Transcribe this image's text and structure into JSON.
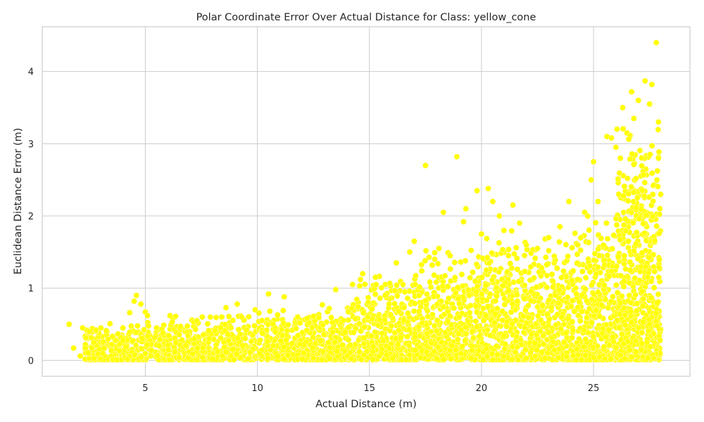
{
  "chart_data": {
    "type": "scatter",
    "title": "Polar Coordinate Error Over Actual Distance for Class: yellow_cone",
    "xlabel": "Actual Distance (m)",
    "ylabel": "Euclidean Distance Error (m)",
    "xlim": [
      0.4,
      29.3
    ],
    "ylim": [
      -0.22,
      4.62
    ],
    "xticks": [
      5,
      10,
      15,
      20,
      25
    ],
    "yticks": [
      0,
      1,
      2,
      3,
      4
    ],
    "grid": true,
    "legend": "none",
    "series": [
      {
        "color": "#ffff00",
        "points": [
          [
            1.6,
            0.5
          ],
          [
            1.8,
            0.17
          ],
          [
            2.2,
            0.45
          ],
          [
            2.1,
            0.06
          ],
          [
            2.5,
            0.4
          ],
          [
            2.8,
            0.42
          ],
          [
            3.1,
            0.1
          ],
          [
            3.5,
            0.22
          ],
          [
            4.0,
            0.45
          ],
          [
            4.3,
            0.66
          ],
          [
            4.5,
            0.82
          ],
          [
            4.6,
            0.9
          ],
          [
            4.8,
            0.78
          ],
          [
            5.0,
            0.67
          ],
          [
            5.1,
            0.62
          ],
          [
            5.5,
            0.45
          ],
          [
            6.1,
            0.62
          ],
          [
            6.2,
            0.53
          ],
          [
            7.3,
            0.55
          ],
          [
            7.9,
            0.6
          ],
          [
            8.6,
            0.73
          ],
          [
            9.1,
            0.78
          ],
          [
            9.3,
            0.6
          ],
          [
            9.9,
            0.7
          ],
          [
            10.5,
            0.92
          ],
          [
            10.9,
            0.63
          ],
          [
            11.2,
            0.88
          ],
          [
            11.8,
            0.6
          ],
          [
            12.9,
            0.77
          ],
          [
            13.5,
            0.98
          ],
          [
            14.2,
            0.72
          ],
          [
            14.6,
            1.12
          ],
          [
            15.3,
            1.05
          ],
          [
            15.7,
            0.9
          ],
          [
            16.2,
            1.35
          ],
          [
            16.5,
            1.05
          ],
          [
            16.8,
            1.5
          ],
          [
            17.0,
            1.65
          ],
          [
            17.5,
            2.7
          ],
          [
            17.8,
            1.32
          ],
          [
            18.1,
            1.55
          ],
          [
            18.3,
            2.05
          ],
          [
            18.6,
            1.45
          ],
          [
            18.9,
            2.82
          ],
          [
            19.2,
            1.92
          ],
          [
            19.3,
            2.1
          ],
          [
            19.8,
            2.35
          ],
          [
            20.0,
            1.75
          ],
          [
            20.3,
            2.38
          ],
          [
            20.5,
            2.2
          ],
          [
            20.8,
            2.0
          ],
          [
            21.0,
            1.8
          ],
          [
            21.4,
            2.15
          ],
          [
            21.7,
            1.9
          ],
          [
            22.0,
            1.6
          ],
          [
            22.5,
            1.55
          ],
          [
            23.0,
            1.7
          ],
          [
            23.5,
            1.85
          ],
          [
            23.9,
            2.2
          ],
          [
            24.3,
            1.6
          ],
          [
            24.6,
            2.05
          ],
          [
            24.9,
            2.5
          ],
          [
            25.0,
            2.75
          ],
          [
            25.2,
            2.2
          ],
          [
            25.6,
            3.1
          ],
          [
            25.8,
            3.08
          ],
          [
            26.0,
            2.95
          ],
          [
            26.2,
            2.8
          ],
          [
            26.3,
            3.5
          ],
          [
            26.7,
            3.72
          ],
          [
            26.8,
            3.35
          ],
          [
            27.0,
            3.6
          ],
          [
            27.3,
            3.87
          ],
          [
            27.5,
            3.55
          ],
          [
            27.6,
            3.82
          ],
          [
            27.8,
            4.4
          ],
          [
            27.9,
            3.3
          ],
          [
            27.9,
            2.8
          ],
          [
            27.8,
            0.65
          ],
          [
            27.5,
            0.5
          ],
          [
            26.9,
            0.12
          ],
          [
            26.2,
            0.07
          ],
          [
            25.0,
            0.04
          ],
          [
            22.0,
            0.03
          ],
          [
            18.0,
            0.02
          ],
          [
            12.0,
            0.02
          ],
          [
            8.0,
            0.02
          ],
          [
            3.0,
            0.02
          ]
        ],
        "cloud": {
          "note": "dense cloud of additional points; error spread grows with distance",
          "bands": [
            {
              "x": [
                2.3,
                6.0
              ],
              "y_max": 0.45
            },
            {
              "x": [
                6.0,
                10.0
              ],
              "y_max": 0.5
            },
            {
              "x": [
                10.0,
                14.0
              ],
              "y_max": 0.6
            },
            {
              "x": [
                14.0,
                17.0
              ],
              "y_max": 0.95
            },
            {
              "x": [
                17.0,
                20.0
              ],
              "y_max": 1.2
            },
            {
              "x": [
                20.0,
                24.0
              ],
              "y_max": 1.4
            },
            {
              "x": [
                24.0,
                26.0
              ],
              "y_max": 1.6
            },
            {
              "x": [
                26.0,
                28.0
              ],
              "y_max": 2.6
            }
          ]
        }
      }
    ]
  }
}
